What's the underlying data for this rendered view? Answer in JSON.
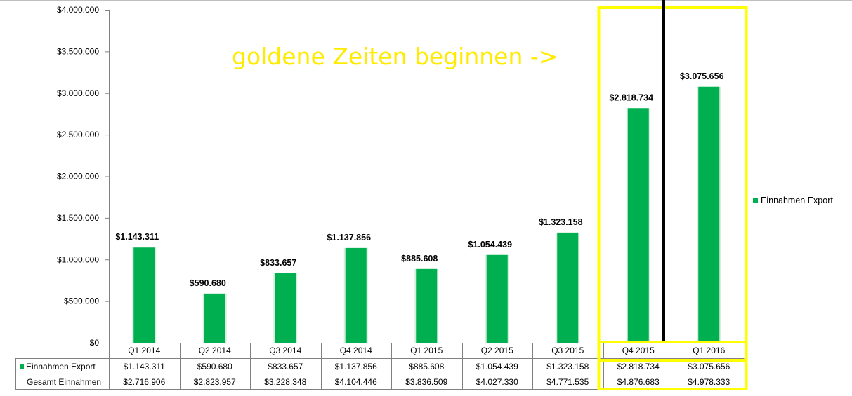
{
  "colors": {
    "bar": "#00b050",
    "bar_edge": "#d6efdc",
    "highlight": "#ffff00",
    "annotation": "#ffeb00",
    "divider": "#000000",
    "grid_line": "#bfbfbf"
  },
  "chart_data": {
    "type": "bar",
    "categories": [
      "Q1 2014",
      "Q2 2014",
      "Q3 2014",
      "Q4 2014",
      "Q1 2015",
      "Q2 2015",
      "Q3 2015",
      "Q4 2015",
      "Q1 2016"
    ],
    "series": [
      {
        "name": "Einnahmen Export",
        "values": [
          1143311,
          590680,
          833657,
          1137856,
          885608,
          1054439,
          1323158,
          2818734,
          3075656
        ],
        "labels": [
          "$1.143.311",
          "$590.680",
          "$833.657",
          "$1.137.856",
          "$885.608",
          "$1.054.439",
          "$1.323.158",
          "$2.818.734",
          "$3.075.656"
        ]
      }
    ],
    "ylim": [
      0,
      4000000
    ],
    "y_ticks": [
      "$0",
      "$500.000",
      "$1.000.000",
      "$1.500.000",
      "$2.000.000",
      "$2.500.000",
      "$3.000.000",
      "$3.500.000",
      "$4.000.000"
    ],
    "legend": {
      "position": "right",
      "entries": [
        "Einnahmen Export"
      ]
    },
    "data_table": {
      "rows": [
        {
          "label": "Einnahmen Export",
          "has_key": true,
          "values": [
            "$1.143.311",
            "$590.680",
            "$833.657",
            "$1.137.856",
            "$885.608",
            "$1.054.439",
            "$1.323.158",
            "$2.818.734",
            "$3.075.656"
          ]
        },
        {
          "label": "Gesamt Einnahmen",
          "has_key": false,
          "values": [
            "$2.716.906",
            "$2.823.957",
            "$3.228.348",
            "$4.104.446",
            "$3.836.509",
            "$4.027.330",
            "$4.771.535",
            "$4.876.683",
            "$4.978.333"
          ]
        }
      ]
    },
    "annotation": "goldene Zeiten beginnen ->",
    "highlighted_categories": [
      "Q4 2015",
      "Q1 2016"
    ],
    "grid": false
  }
}
